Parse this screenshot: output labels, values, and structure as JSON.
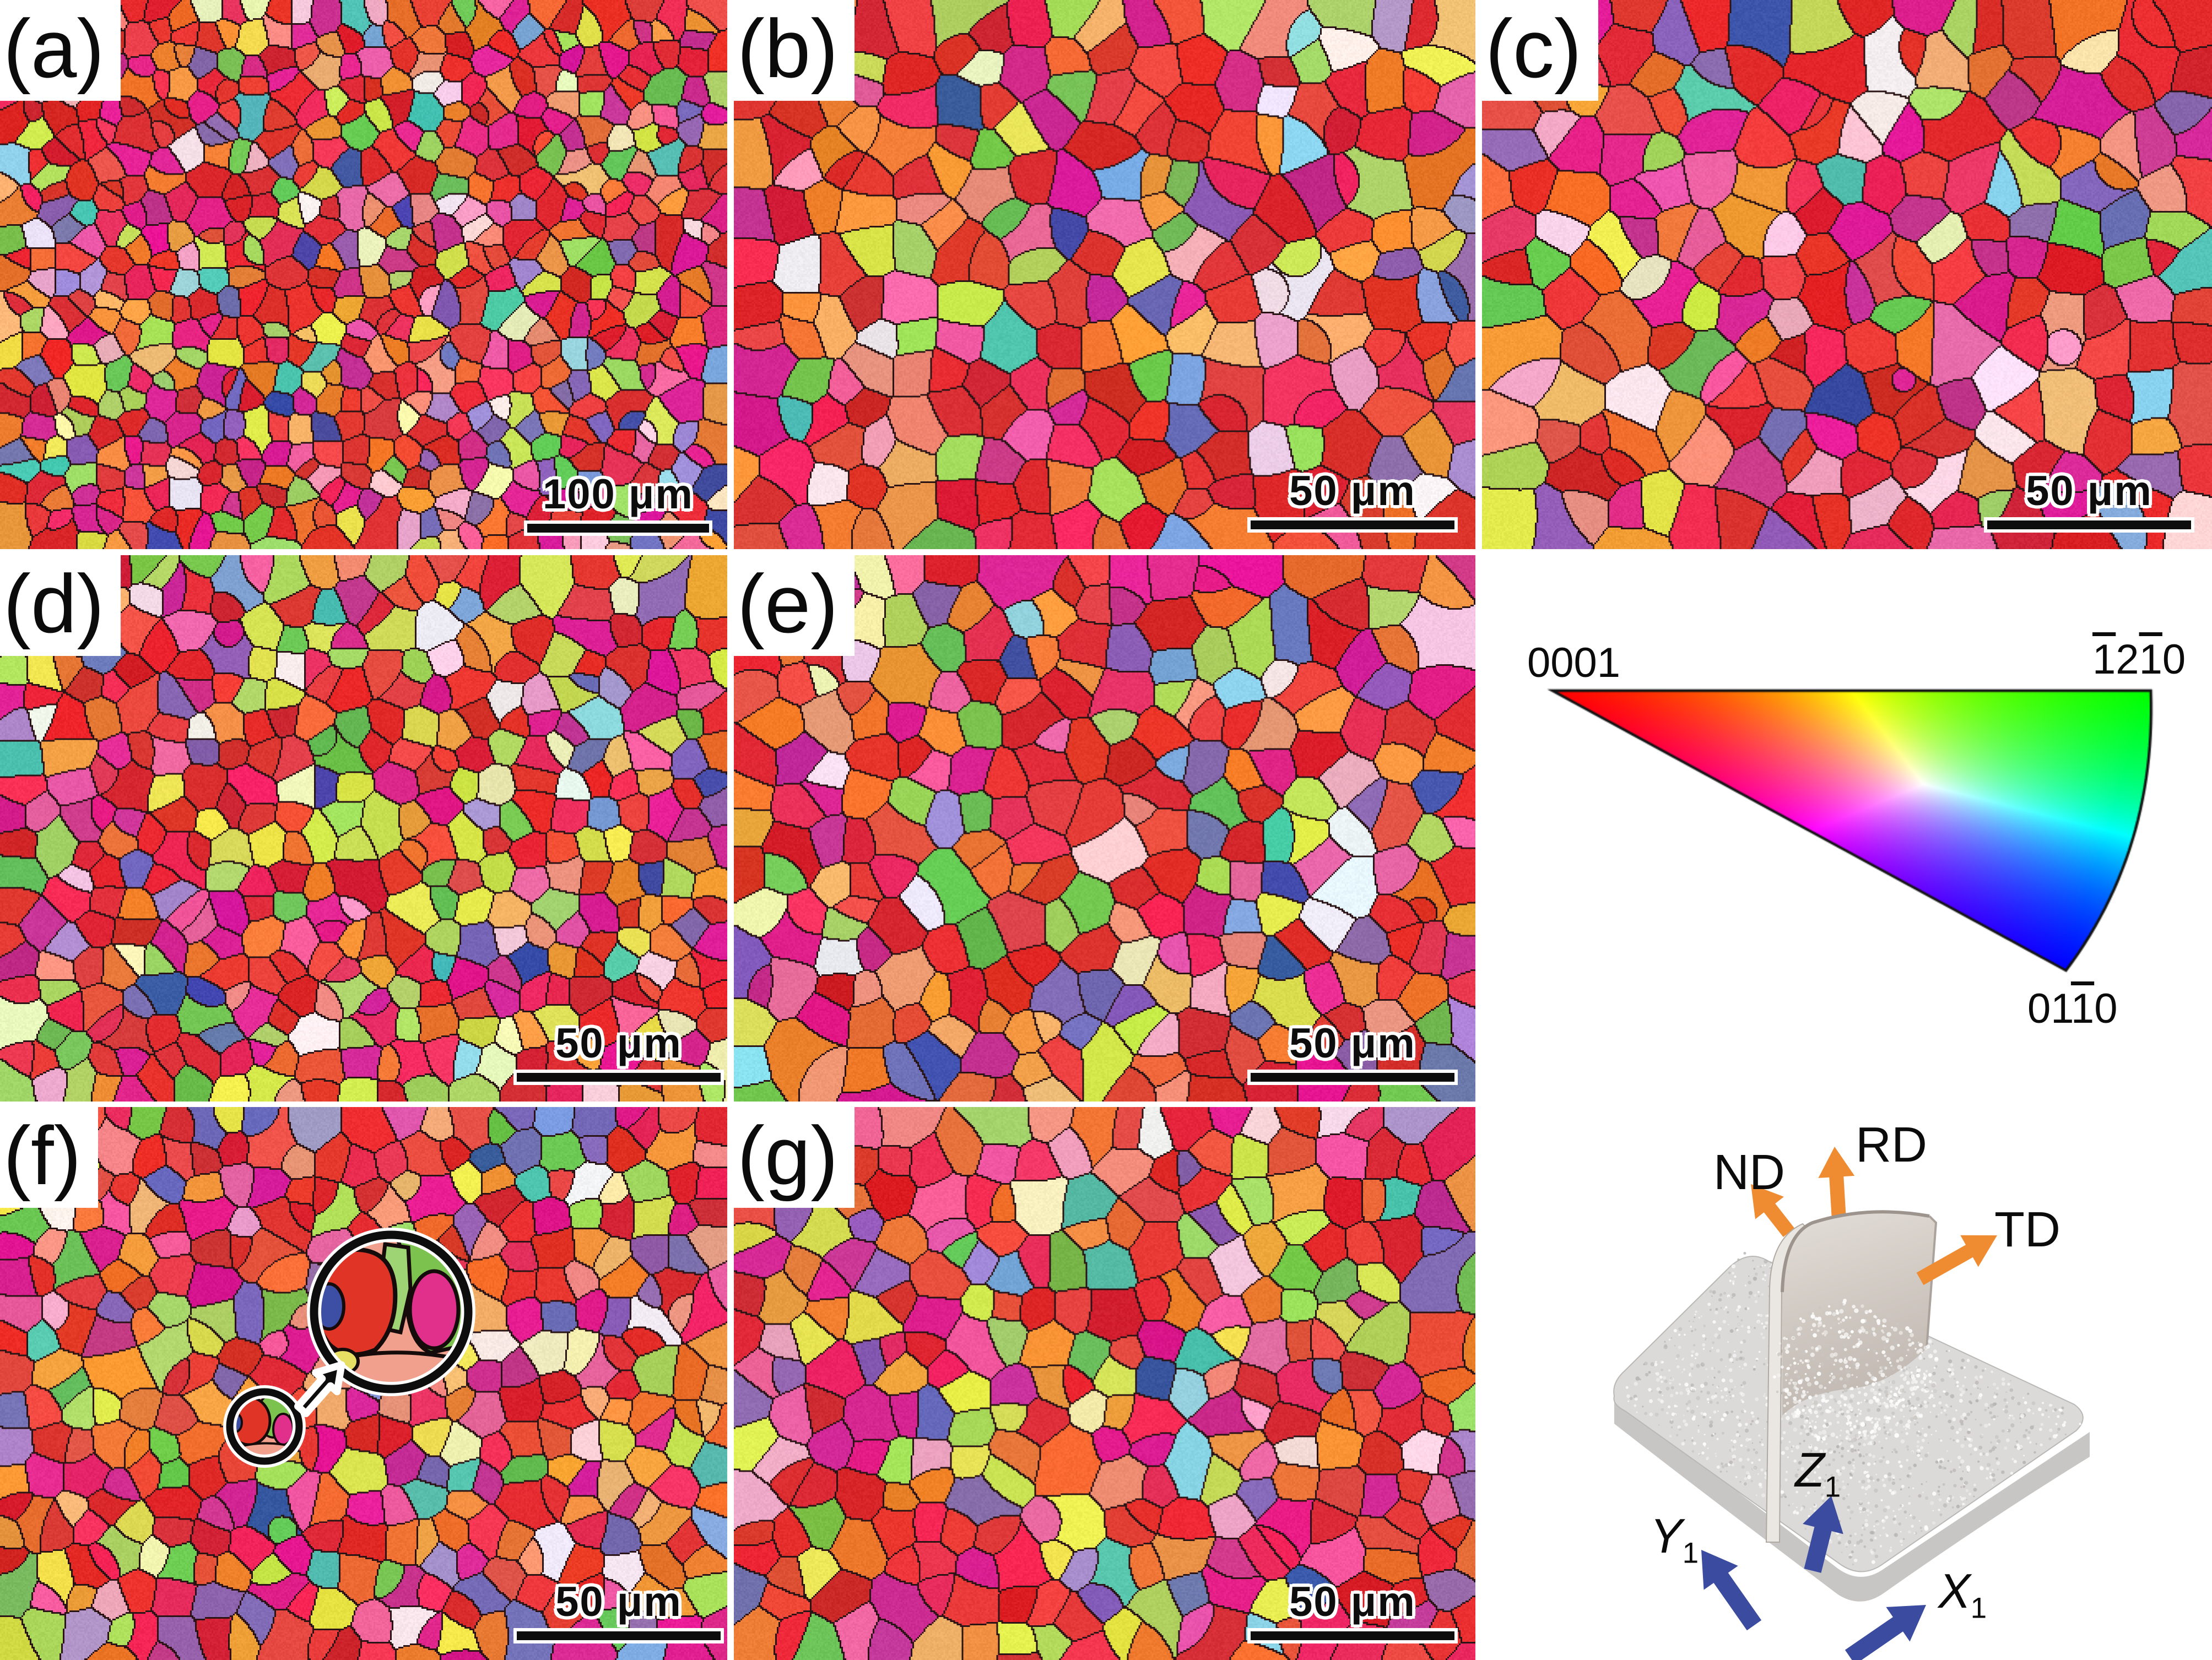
{
  "panels": [
    {
      "id": "a",
      "label": "(a)",
      "scale_bar": "100 μm",
      "render": {
        "seed": 101,
        "grains": 680,
        "bias": {}
      }
    },
    {
      "id": "b",
      "label": "(b)",
      "scale_bar": "50 μm",
      "render": {
        "seed": 212,
        "grains": 260,
        "bias": {}
      }
    },
    {
      "id": "c",
      "label": "(c)",
      "scale_bar": "50 μm",
      "render": {
        "seed": 313,
        "grains": 240,
        "bias": {}
      }
    },
    {
      "id": "d",
      "label": "(d)",
      "scale_bar": "50 μm",
      "render": {
        "seed": 424,
        "grains": 430,
        "bias": {
          "green": 1.5,
          "yellow": 1.7
        }
      }
    },
    {
      "id": "e",
      "label": "(e)",
      "scale_bar": "50 μm",
      "render": {
        "seed": 535,
        "grains": 285,
        "bias": {
          "yellow": 1.25
        }
      }
    },
    {
      "id": "f",
      "label": "(f)",
      "scale_bar": "50 μm",
      "render": {
        "seed": 646,
        "grains": 400,
        "bias": {
          "orange": 1.25,
          "green": 1.1
        }
      }
    },
    {
      "id": "g",
      "label": "(g)",
      "scale_bar": "50 μm",
      "render": {
        "seed": 757,
        "grains": 310,
        "bias": {}
      }
    }
  ],
  "ipf_key": {
    "top_left": [
      {
        "t": "0001",
        "b": false
      }
    ],
    "top_right": [
      {
        "t": "1",
        "b": true
      },
      {
        "t": "2",
        "b": false
      },
      {
        "t": "1",
        "b": true
      },
      {
        "t": "0",
        "b": false
      }
    ],
    "bottom": [
      {
        "t": "01",
        "b": false
      },
      {
        "t": "1",
        "b": true
      },
      {
        "t": "0",
        "b": false
      }
    ],
    "vertex_colors": {
      "v0001": "#ff0000",
      "v1210": "#00ff00",
      "v0110": "#0000ff"
    }
  },
  "schematic": {
    "direction_labels": {
      "nd": "ND",
      "rd": "RD",
      "td": "TD"
    },
    "axis_labels": {
      "y": {
        "base": "Y",
        "sub": "1"
      },
      "z": {
        "base": "Z",
        "sub": "1"
      },
      "x": {
        "base": "X",
        "sub": "1"
      }
    },
    "direction_arrow_color": "#ef8c32",
    "axis_arrow_color": "#3b4b9f",
    "slab_color": "#dbdad8",
    "slab_side_color": "#c7c6c4"
  },
  "map_style": {
    "boundary_color": "#2b1416",
    "palette": [
      {
        "c": "#e33030",
        "w": 13,
        "g": "red"
      },
      {
        "c": "#d8272c",
        "w": 8,
        "g": "red"
      },
      {
        "c": "#ea4a40",
        "w": 7,
        "g": "red"
      },
      {
        "c": "#ee2d5c",
        "w": 6,
        "g": "red"
      },
      {
        "c": "#df2090",
        "w": 6,
        "g": "magenta"
      },
      {
        "c": "#c93090",
        "w": 3,
        "g": "magenta"
      },
      {
        "c": "#ee60a2",
        "w": 3.5,
        "g": "pink"
      },
      {
        "c": "#f4a6c2",
        "w": 1.5,
        "g": "pink"
      },
      {
        "c": "#f7cfde",
        "w": 1,
        "g": "pink"
      },
      {
        "c": "#f0907c",
        "w": 3,
        "g": "salmon"
      },
      {
        "c": "#ee7530",
        "w": 6,
        "g": "orange"
      },
      {
        "c": "#f29a3d",
        "w": 4.5,
        "g": "orange"
      },
      {
        "c": "#f3b56e",
        "w": 1.5,
        "g": "orange"
      },
      {
        "c": "#6ec150",
        "w": 3.5,
        "g": "green"
      },
      {
        "c": "#a7d962",
        "w": 3,
        "g": "green"
      },
      {
        "c": "#cfe24f",
        "w": 2.5,
        "g": "yellow"
      },
      {
        "c": "#ebe64e",
        "w": 2,
        "g": "yellow"
      },
      {
        "c": "#f1eeb4",
        "w": 1.5,
        "g": "yellow"
      },
      {
        "c": "#8d63b3",
        "w": 3,
        "g": "purple"
      },
      {
        "c": "#7270b6",
        "w": 2,
        "g": "purple"
      },
      {
        "c": "#a98fd0",
        "w": 1,
        "g": "purple"
      },
      {
        "c": "#4050a6",
        "w": 1.2,
        "g": "blue"
      },
      {
        "c": "#7fa0da",
        "w": 0.8,
        "g": "blue"
      },
      {
        "c": "#4fc2ad",
        "w": 0.9,
        "g": "teal"
      },
      {
        "c": "#90d8e6",
        "w": 0.6,
        "g": "teal"
      },
      {
        "c": "#f4ecf0",
        "w": 1,
        "g": "light"
      }
    ]
  },
  "inset": {
    "colors": {
      "red": "#e03526",
      "blue": "#3c4fa4",
      "green": "#7cc24f",
      "light_green": "#9fd474",
      "magenta": "#e0308c",
      "salmon": "#f0a08c",
      "yellow": "#e6df63",
      "orange": "#ef7f35"
    }
  }
}
